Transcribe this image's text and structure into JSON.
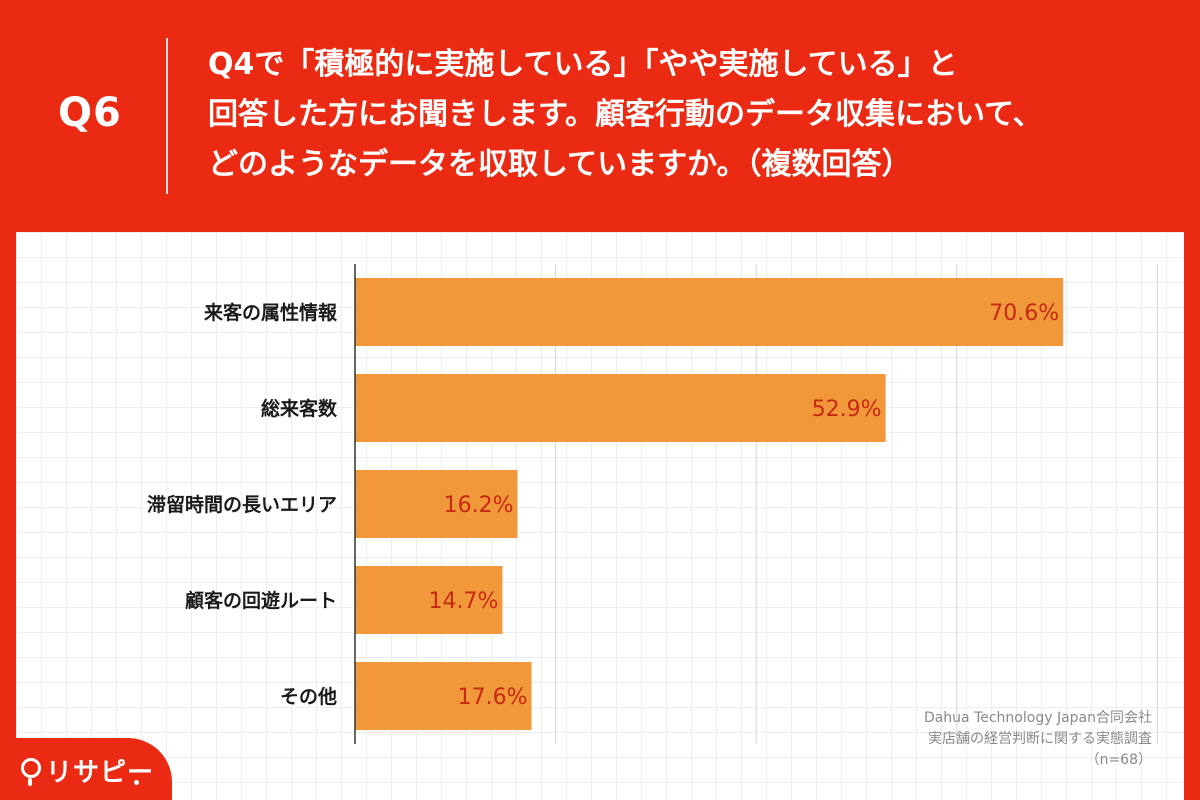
{
  "header": {
    "qnum": "Q6",
    "question_lines": [
      "Q4で「積極的に実施している」「やや実施している」と",
      "回答した方にお聞きします。顧客行動のデータ収集において、",
      "どのようなデータを収取していますか。（複数回答）"
    ]
  },
  "chart_data": {
    "type": "bar",
    "orientation": "horizontal",
    "categories": [
      "来客の属性情報",
      "総来客数",
      "滞留時間の長いエリア",
      "顧客の回遊ルート",
      "その他"
    ],
    "values": [
      70.6,
      52.9,
      16.2,
      14.7,
      17.6
    ],
    "data_labels": [
      "70.6%",
      "52.9%",
      "16.2%",
      "14.7%",
      "17.6%"
    ],
    "xlim": [
      0,
      80
    ],
    "grid_step": 20,
    "grid": true,
    "bar_color": "#f0983a",
    "label_color": "#c62a12"
  },
  "source": {
    "line1": "Dahua Technology Japan合同会社",
    "line2": "実店舗の経営判断に関する実態調査",
    "line3": "（n=68）"
  },
  "logo": {
    "text": "リサピー"
  },
  "colors": {
    "brand_red": "#ea2a12",
    "bar_orange": "#f0983a"
  }
}
